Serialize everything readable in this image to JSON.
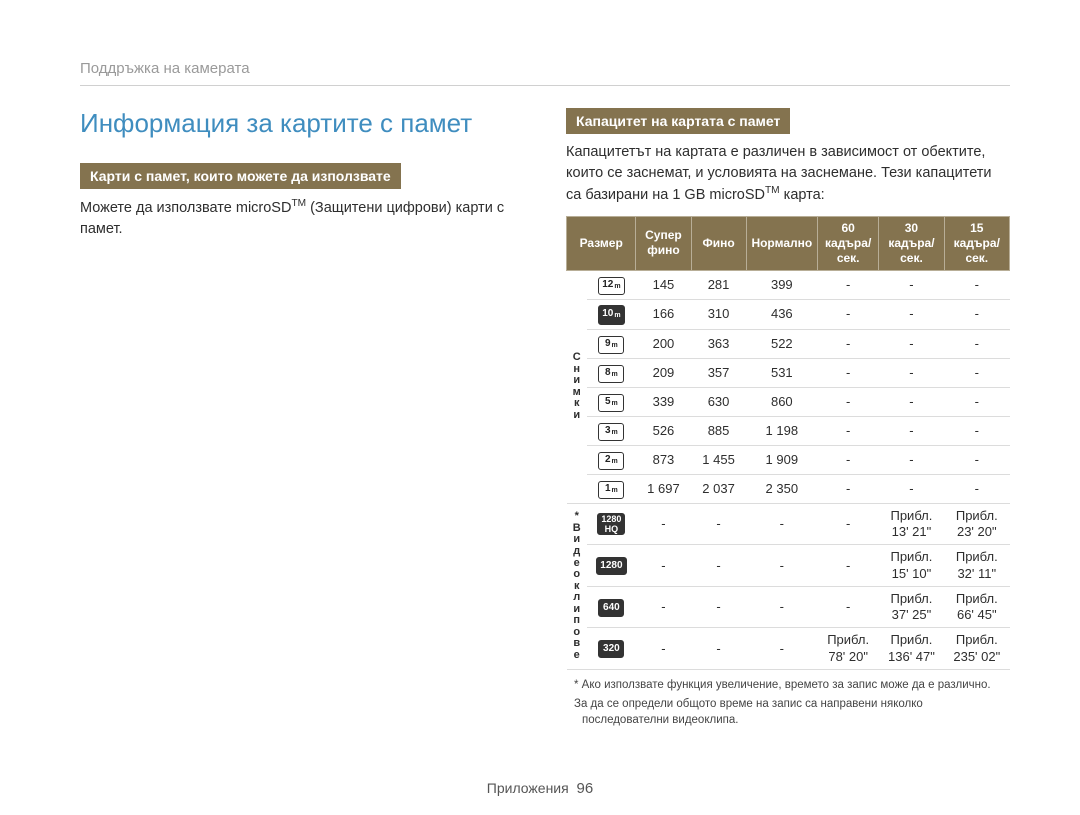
{
  "breadcrumb": "Поддръжка на камерата",
  "page_title": "Информация за картите с памет",
  "left": {
    "section_title": "Карти с памет, които можете да използвате",
    "body_pre": "Можете да използвате microSD",
    "body_sup": "TM",
    "body_post": " (Защитени цифрови) карти с памет."
  },
  "right": {
    "section_title": "Капацитет на картата с памет",
    "body_pre": "Капацитетът на картата е различен в зависимост от обектите, които се заснемат, и условията на заснемане. Тези капацитети са базирани на 1 GB microSD",
    "body_sup": "TM",
    "body_post": " карта:"
  },
  "table": {
    "header_bg": "#84734f",
    "header_fg": "#ffffff",
    "columns": {
      "size": "Размер",
      "superfine": "Супер фино",
      "fine": "Фино",
      "normal": "Нормално",
      "fps60": "60 кадъра/сек.",
      "fps30": "30 кадъра/сек.",
      "fps15": "15 кадъра/сек."
    },
    "groups": {
      "photos": "Снимки",
      "videos": "* Видеоклипове"
    },
    "photo_rows": [
      {
        "icon": "12m",
        "icon_style": "light",
        "sf": "145",
        "f": "281",
        "n": "399",
        "fps60": "-",
        "fps30": "-",
        "fps15": "-"
      },
      {
        "icon": "10m",
        "icon_style": "dark",
        "sf": "166",
        "f": "310",
        "n": "436",
        "fps60": "-",
        "fps30": "-",
        "fps15": "-"
      },
      {
        "icon": "9m",
        "icon_style": "light",
        "sf": "200",
        "f": "363",
        "n": "522",
        "fps60": "-",
        "fps30": "-",
        "fps15": "-"
      },
      {
        "icon": "8m",
        "icon_style": "light",
        "sf": "209",
        "f": "357",
        "n": "531",
        "fps60": "-",
        "fps30": "-",
        "fps15": "-"
      },
      {
        "icon": "5m",
        "icon_style": "light",
        "sf": "339",
        "f": "630",
        "n": "860",
        "fps60": "-",
        "fps30": "-",
        "fps15": "-"
      },
      {
        "icon": "3m",
        "icon_style": "light",
        "sf": "526",
        "f": "885",
        "n": "1 198",
        "fps60": "-",
        "fps30": "-",
        "fps15": "-"
      },
      {
        "icon": "2m",
        "icon_style": "light",
        "sf": "873",
        "f": "1 455",
        "n": "1 909",
        "fps60": "-",
        "fps30": "-",
        "fps15": "-"
      },
      {
        "icon": "1m",
        "icon_style": "light",
        "sf": "1 697",
        "f": "2 037",
        "n": "2 350",
        "fps60": "-",
        "fps30": "-",
        "fps15": "-"
      }
    ],
    "video_rows": [
      {
        "icon": "1280 HQ",
        "icon_style": "dark",
        "sf": "-",
        "f": "-",
        "n": "-",
        "fps60": "-",
        "fps30": "Прибл. 13' 21\"",
        "fps15": "Прибл. 23' 20\""
      },
      {
        "icon": "1280",
        "icon_style": "dark",
        "sf": "-",
        "f": "-",
        "n": "-",
        "fps60": "-",
        "fps30": "Прибл. 15' 10\"",
        "fps15": "Прибл. 32' 11\""
      },
      {
        "icon": "640",
        "icon_style": "dark",
        "sf": "-",
        "f": "-",
        "n": "-",
        "fps60": "-",
        "fps30": "Прибл. 37' 25\"",
        "fps15": "Прибл. 66' 45\""
      },
      {
        "icon": "320",
        "icon_style": "dark",
        "sf": "-",
        "f": "-",
        "n": "-",
        "fps60": "Прибл. 78' 20\"",
        "fps30": "Прибл. 136' 47\"",
        "fps15": "Прибл. 235' 02\""
      }
    ]
  },
  "footnotes": [
    "* Ако използвате функция увеличение, времето за запис може да е различно.",
    "За да се определи общото време на запис са направени няколко последователни видеоклипа."
  ],
  "footer": {
    "label": "Приложения",
    "page": "96"
  }
}
